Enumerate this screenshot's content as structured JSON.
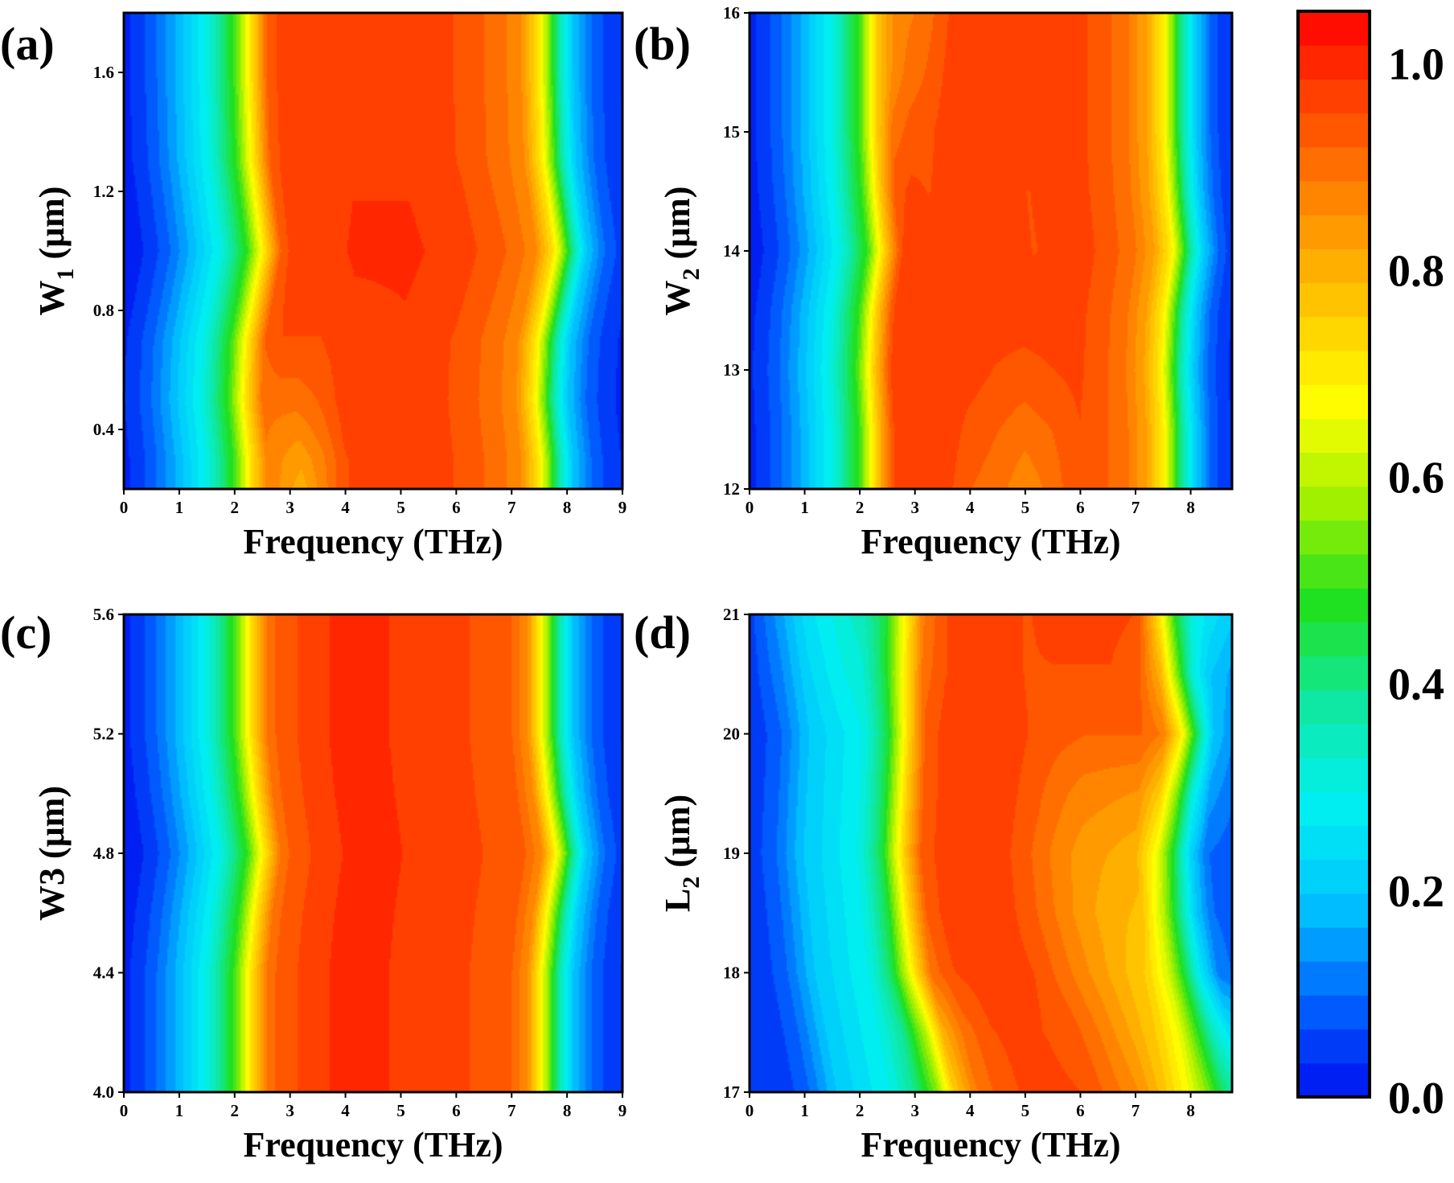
{
  "figure": {
    "colorbar": {
      "name": "transmission-colorbar",
      "range": [
        0.0,
        1.05
      ],
      "ticks": [
        "0.0",
        "0.2",
        "0.4",
        "0.6",
        "0.8",
        "1.0"
      ],
      "tick_values": [
        0.0,
        0.2,
        0.4,
        0.6,
        0.8,
        1.0
      ],
      "levels": 32,
      "stops": [
        "#0010f0",
        "#0066ff",
        "#00c8ff",
        "#00f0f0",
        "#10e8a0",
        "#20e020",
        "#9ef000",
        "#ffff00",
        "#ffc800",
        "#ff8c00",
        "#ff4a00",
        "#ff0000"
      ]
    }
  },
  "chart_data": [
    {
      "type": "heatmap",
      "panel": "(a)",
      "xlabel": "Frequency (THz)",
      "ylabel_main": "W",
      "ylabel_sub": "1",
      "ylabel_unit": " (μm)",
      "xlim": [
        0,
        9
      ],
      "ylim": [
        0.2,
        1.8
      ],
      "xticks": [
        "0",
        "1",
        "2",
        "3",
        "4",
        "5",
        "6",
        "7",
        "8",
        "9"
      ],
      "xtick_values": [
        0,
        1,
        2,
        3,
        4,
        5,
        6,
        7,
        8,
        9
      ],
      "yticks": [
        "0.4",
        "0.8",
        "1.2",
        "1.6"
      ],
      "ytick_values": [
        0.4,
        0.8,
        1.2,
        1.6
      ],
      "x": [
        0,
        0.5,
        1,
        1.5,
        2,
        2.3,
        2.6,
        2.9,
        3.2,
        3.6,
        4,
        5,
        6,
        6.8,
        7.2,
        7.5,
        7.7,
        7.85,
        8.1,
        8.5,
        9
      ],
      "y": [
        0.2,
        0.3,
        0.5,
        0.7,
        1.0,
        1.3,
        1.6,
        1.8
      ],
      "shift": [
        0,
        0,
        -0.1,
        -0.05,
        0.25,
        0.05,
        0,
        0
      ],
      "z": [
        [
          0.02,
          0.08,
          0.18,
          0.3,
          0.5,
          0.72,
          0.88,
          0.84,
          0.8,
          0.87,
          0.95,
          0.98,
          0.95,
          0.9,
          0.85,
          0.7,
          0.52,
          0.38,
          0.2,
          0.08,
          0.03
        ],
        [
          0.02,
          0.08,
          0.18,
          0.3,
          0.5,
          0.72,
          0.88,
          0.85,
          0.83,
          0.88,
          0.95,
          0.98,
          0.95,
          0.9,
          0.85,
          0.7,
          0.52,
          0.38,
          0.2,
          0.08,
          0.03
        ],
        [
          0.02,
          0.08,
          0.18,
          0.3,
          0.5,
          0.72,
          0.9,
          0.9,
          0.9,
          0.92,
          0.96,
          0.98,
          0.95,
          0.9,
          0.85,
          0.7,
          0.52,
          0.38,
          0.2,
          0.08,
          0.03
        ],
        [
          0.02,
          0.08,
          0.18,
          0.3,
          0.5,
          0.72,
          0.92,
          0.95,
          0.95,
          0.95,
          0.97,
          0.98,
          0.95,
          0.9,
          0.85,
          0.7,
          0.52,
          0.38,
          0.2,
          0.08,
          0.03
        ],
        [
          0.02,
          0.08,
          0.18,
          0.3,
          0.5,
          0.72,
          0.93,
          0.98,
          0.98,
          0.98,
          0.99,
          0.99,
          0.96,
          0.91,
          0.86,
          0.72,
          0.55,
          0.4,
          0.2,
          0.08,
          0.03
        ],
        [
          0.02,
          0.08,
          0.18,
          0.3,
          0.5,
          0.72,
          0.93,
          0.97,
          0.97,
          0.97,
          0.98,
          0.98,
          0.95,
          0.9,
          0.85,
          0.7,
          0.52,
          0.38,
          0.2,
          0.08,
          0.03
        ],
        [
          0.02,
          0.08,
          0.18,
          0.3,
          0.5,
          0.72,
          0.93,
          0.97,
          0.98,
          0.98,
          0.98,
          0.98,
          0.95,
          0.9,
          0.85,
          0.7,
          0.52,
          0.38,
          0.2,
          0.08,
          0.03
        ],
        [
          0.02,
          0.08,
          0.18,
          0.3,
          0.5,
          0.72,
          0.93,
          0.97,
          0.98,
          0.98,
          0.98,
          0.98,
          0.95,
          0.9,
          0.85,
          0.7,
          0.52,
          0.38,
          0.2,
          0.08,
          0.03
        ]
      ]
    },
    {
      "type": "heatmap",
      "panel": "(b)",
      "xlabel": "Frequency (THz)",
      "ylabel_main": "W",
      "ylabel_sub": "2",
      "ylabel_unit": " (μm)",
      "xlim": [
        0,
        8.75
      ],
      "ylim": [
        12,
        16
      ],
      "xticks": [
        "0",
        "1",
        "2",
        "3",
        "4",
        "5",
        "6",
        "7",
        "8"
      ],
      "xtick_values": [
        0,
        1,
        2,
        3,
        4,
        5,
        6,
        7,
        8
      ],
      "yticks": [
        "12",
        "13",
        "14",
        "15",
        "16"
      ],
      "ytick_values": [
        12,
        13,
        14,
        15,
        16
      ],
      "x": [
        0,
        0.5,
        1,
        1.5,
        2,
        2.3,
        2.6,
        2.9,
        3.2,
        3.6,
        4,
        4.5,
        5,
        5.5,
        6,
        6.8,
        7.2,
        7.5,
        7.7,
        7.85,
        8.1,
        8.4,
        8.75
      ],
      "y": [
        12,
        12.5,
        13,
        13.5,
        14,
        14.5,
        15,
        15.5,
        16
      ],
      "shift": [
        0,
        0,
        -0.05,
        0,
        0.15,
        0.05,
        0,
        0,
        0
      ],
      "z": [
        [
          0.02,
          0.08,
          0.18,
          0.3,
          0.5,
          0.75,
          0.95,
          0.98,
          0.98,
          0.96,
          0.92,
          0.9,
          0.86,
          0.9,
          0.95,
          0.9,
          0.82,
          0.7,
          0.52,
          0.38,
          0.2,
          0.08,
          0.03
        ],
        [
          0.02,
          0.08,
          0.18,
          0.3,
          0.5,
          0.75,
          0.95,
          0.98,
          0.98,
          0.97,
          0.94,
          0.92,
          0.9,
          0.92,
          0.95,
          0.9,
          0.82,
          0.7,
          0.52,
          0.38,
          0.2,
          0.08,
          0.03
        ],
        [
          0.02,
          0.08,
          0.18,
          0.3,
          0.5,
          0.75,
          0.95,
          0.98,
          0.98,
          0.98,
          0.97,
          0.95,
          0.94,
          0.95,
          0.96,
          0.9,
          0.82,
          0.7,
          0.52,
          0.38,
          0.2,
          0.08,
          0.03
        ],
        [
          0.02,
          0.08,
          0.18,
          0.3,
          0.5,
          0.75,
          0.95,
          0.97,
          0.96,
          0.98,
          0.98,
          0.97,
          0.97,
          0.97,
          0.96,
          0.9,
          0.82,
          0.7,
          0.52,
          0.38,
          0.2,
          0.08,
          0.03
        ],
        [
          0.02,
          0.08,
          0.18,
          0.3,
          0.5,
          0.75,
          0.95,
          0.97,
          0.97,
          0.98,
          0.98,
          0.98,
          0.95,
          0.96,
          0.96,
          0.9,
          0.82,
          0.7,
          0.52,
          0.38,
          0.2,
          0.08,
          0.03
        ],
        [
          0.02,
          0.08,
          0.18,
          0.3,
          0.5,
          0.75,
          0.94,
          0.96,
          0.95,
          0.97,
          0.98,
          0.98,
          0.95,
          0.97,
          0.96,
          0.9,
          0.82,
          0.7,
          0.52,
          0.38,
          0.2,
          0.08,
          0.03
        ],
        [
          0.02,
          0.08,
          0.18,
          0.3,
          0.5,
          0.75,
          0.9,
          0.93,
          0.94,
          0.97,
          0.98,
          0.98,
          0.98,
          0.98,
          0.96,
          0.9,
          0.82,
          0.7,
          0.52,
          0.38,
          0.2,
          0.08,
          0.03
        ],
        [
          0.02,
          0.08,
          0.18,
          0.3,
          0.5,
          0.75,
          0.86,
          0.9,
          0.92,
          0.96,
          0.98,
          0.98,
          0.98,
          0.98,
          0.96,
          0.9,
          0.82,
          0.7,
          0.52,
          0.38,
          0.2,
          0.08,
          0.03
        ],
        [
          0.02,
          0.08,
          0.18,
          0.3,
          0.5,
          0.75,
          0.86,
          0.88,
          0.9,
          0.95,
          0.98,
          0.98,
          0.98,
          0.98,
          0.96,
          0.9,
          0.82,
          0.7,
          0.52,
          0.38,
          0.2,
          0.08,
          0.03
        ]
      ]
    },
    {
      "type": "heatmap",
      "panel": "(c)",
      "xlabel": "Frequency (THz)",
      "ylabel_main": "W3 (μm)",
      "ylabel_sub": "",
      "ylabel_unit": "",
      "xlim": [
        0,
        9
      ],
      "ylim": [
        4.0,
        5.6
      ],
      "xticks": [
        "0",
        "1",
        "2",
        "3",
        "4",
        "5",
        "6",
        "7",
        "8",
        "9"
      ],
      "xtick_values": [
        0,
        1,
        2,
        3,
        4,
        5,
        6,
        7,
        8,
        9
      ],
      "yticks": [
        "4.0",
        "4.4",
        "4.8",
        "5.2",
        "5.6"
      ],
      "ytick_values": [
        4.0,
        4.4,
        4.8,
        5.2,
        5.6
      ],
      "x": [
        0,
        0.5,
        1,
        1.5,
        2,
        2.3,
        2.6,
        2.9,
        3.3,
        3.8,
        4.5,
        5.5,
        6.3,
        7,
        7.3,
        7.5,
        7.7,
        7.85,
        8.1,
        8.5,
        9
      ],
      "y": [
        4.0,
        4.2,
        4.4,
        4.6,
        4.8,
        5.0,
        5.2,
        5.4,
        5.6
      ],
      "shift": [
        0,
        0,
        0,
        0.1,
        0.25,
        0.1,
        0,
        0,
        0
      ],
      "z": [
        [
          0.02,
          0.08,
          0.18,
          0.3,
          0.5,
          0.72,
          0.9,
          0.94,
          0.96,
          0.99,
          0.99,
          0.97,
          0.95,
          0.92,
          0.85,
          0.7,
          0.52,
          0.38,
          0.2,
          0.08,
          0.03
        ],
        [
          0.02,
          0.08,
          0.18,
          0.3,
          0.5,
          0.72,
          0.9,
          0.94,
          0.96,
          0.99,
          0.99,
          0.97,
          0.95,
          0.92,
          0.85,
          0.7,
          0.52,
          0.38,
          0.2,
          0.08,
          0.03
        ],
        [
          0.02,
          0.08,
          0.18,
          0.3,
          0.5,
          0.72,
          0.9,
          0.94,
          0.96,
          0.99,
          0.99,
          0.97,
          0.95,
          0.92,
          0.85,
          0.7,
          0.52,
          0.38,
          0.2,
          0.08,
          0.03
        ],
        [
          0.02,
          0.08,
          0.18,
          0.3,
          0.5,
          0.72,
          0.9,
          0.94,
          0.96,
          0.99,
          0.99,
          0.97,
          0.95,
          0.92,
          0.85,
          0.7,
          0.52,
          0.38,
          0.2,
          0.08,
          0.03
        ],
        [
          0.02,
          0.08,
          0.18,
          0.3,
          0.5,
          0.72,
          0.9,
          0.94,
          0.96,
          0.99,
          0.99,
          0.97,
          0.95,
          0.92,
          0.86,
          0.72,
          0.55,
          0.4,
          0.2,
          0.08,
          0.03
        ],
        [
          0.02,
          0.08,
          0.18,
          0.3,
          0.5,
          0.72,
          0.9,
          0.94,
          0.96,
          0.99,
          0.99,
          0.97,
          0.95,
          0.92,
          0.85,
          0.7,
          0.52,
          0.38,
          0.2,
          0.08,
          0.03
        ],
        [
          0.02,
          0.08,
          0.18,
          0.3,
          0.5,
          0.72,
          0.9,
          0.94,
          0.96,
          0.99,
          0.99,
          0.97,
          0.95,
          0.92,
          0.85,
          0.7,
          0.52,
          0.38,
          0.2,
          0.08,
          0.03
        ],
        [
          0.02,
          0.08,
          0.18,
          0.3,
          0.5,
          0.72,
          0.9,
          0.94,
          0.96,
          0.99,
          0.99,
          0.97,
          0.95,
          0.92,
          0.85,
          0.7,
          0.52,
          0.38,
          0.2,
          0.08,
          0.03
        ],
        [
          0.02,
          0.08,
          0.18,
          0.3,
          0.5,
          0.72,
          0.9,
          0.94,
          0.96,
          0.99,
          0.99,
          0.97,
          0.95,
          0.92,
          0.85,
          0.7,
          0.52,
          0.38,
          0.2,
          0.08,
          0.03
        ]
      ]
    },
    {
      "type": "heatmap",
      "panel": "(d)",
      "xlabel": "Frequency (THz)",
      "ylabel_main": "L",
      "ylabel_sub": "2",
      "ylabel_unit": " (μm)",
      "xlim": [
        0,
        8.75
      ],
      "ylim": [
        17,
        21
      ],
      "xticks": [
        "0",
        "1",
        "2",
        "3",
        "4",
        "5",
        "6",
        "7",
        "8"
      ],
      "xtick_values": [
        0,
        1,
        2,
        3,
        4,
        5,
        6,
        7,
        8
      ],
      "yticks": [
        "17",
        "18",
        "19",
        "20",
        "21"
      ],
      "ytick_values": [
        17,
        18,
        19,
        20,
        21
      ],
      "x": [
        0,
        0.5,
        1,
        1.5,
        2,
        2.4,
        2.8,
        3.1,
        3.5,
        4,
        4.5,
        5,
        5.5,
        6,
        6.5,
        7,
        7.4,
        7.7,
        8,
        8.3,
        8.75
      ],
      "y": [
        17,
        17.5,
        18,
        18.5,
        19,
        19.5,
        20,
        20.5,
        21
      ],
      "shift": [
        0.6,
        0.4,
        0.2,
        0.1,
        0,
        0.05,
        0.1,
        0.05,
        0.05
      ],
      "z": [
        [
          0.04,
          0.1,
          0.2,
          0.25,
          0.3,
          0.4,
          0.55,
          0.75,
          0.88,
          0.94,
          0.96,
          0.96,
          0.95,
          0.9,
          0.85,
          0.75,
          0.65,
          0.55,
          0.42,
          0.35,
          0.3
        ],
        [
          0.04,
          0.1,
          0.2,
          0.25,
          0.3,
          0.4,
          0.6,
          0.8,
          0.9,
          0.95,
          0.96,
          0.95,
          0.93,
          0.88,
          0.82,
          0.75,
          0.65,
          0.5,
          0.35,
          0.25,
          0.2
        ],
        [
          0.04,
          0.1,
          0.2,
          0.25,
          0.3,
          0.45,
          0.72,
          0.9,
          0.95,
          0.97,
          0.97,
          0.95,
          0.9,
          0.85,
          0.8,
          0.75,
          0.62,
          0.45,
          0.25,
          0.12,
          0.08
        ],
        [
          0.04,
          0.1,
          0.2,
          0.25,
          0.3,
          0.45,
          0.75,
          0.92,
          0.97,
          0.98,
          0.97,
          0.93,
          0.88,
          0.83,
          0.8,
          0.78,
          0.6,
          0.4,
          0.2,
          0.1,
          0.08
        ],
        [
          0.04,
          0.1,
          0.2,
          0.25,
          0.3,
          0.45,
          0.75,
          0.92,
          0.97,
          0.98,
          0.97,
          0.93,
          0.88,
          0.84,
          0.82,
          0.8,
          0.65,
          0.45,
          0.22,
          0.1,
          0.08
        ],
        [
          0.04,
          0.1,
          0.2,
          0.25,
          0.3,
          0.45,
          0.75,
          0.92,
          0.97,
          0.98,
          0.97,
          0.94,
          0.9,
          0.87,
          0.86,
          0.85,
          0.75,
          0.55,
          0.3,
          0.15,
          0.1
        ],
        [
          0.04,
          0.1,
          0.2,
          0.25,
          0.3,
          0.45,
          0.75,
          0.93,
          0.97,
          0.98,
          0.97,
          0.95,
          0.93,
          0.92,
          0.92,
          0.92,
          0.88,
          0.72,
          0.45,
          0.2,
          0.12
        ],
        [
          0.05,
          0.12,
          0.22,
          0.28,
          0.32,
          0.45,
          0.72,
          0.9,
          0.95,
          0.97,
          0.96,
          0.95,
          0.95,
          0.95,
          0.95,
          0.93,
          0.8,
          0.55,
          0.3,
          0.2,
          0.15
        ],
        [
          0.06,
          0.15,
          0.25,
          0.3,
          0.35,
          0.45,
          0.7,
          0.88,
          0.95,
          0.97,
          0.96,
          0.95,
          0.96,
          0.96,
          0.96,
          0.95,
          0.7,
          0.45,
          0.3,
          0.25,
          0.2
        ]
      ]
    }
  ]
}
